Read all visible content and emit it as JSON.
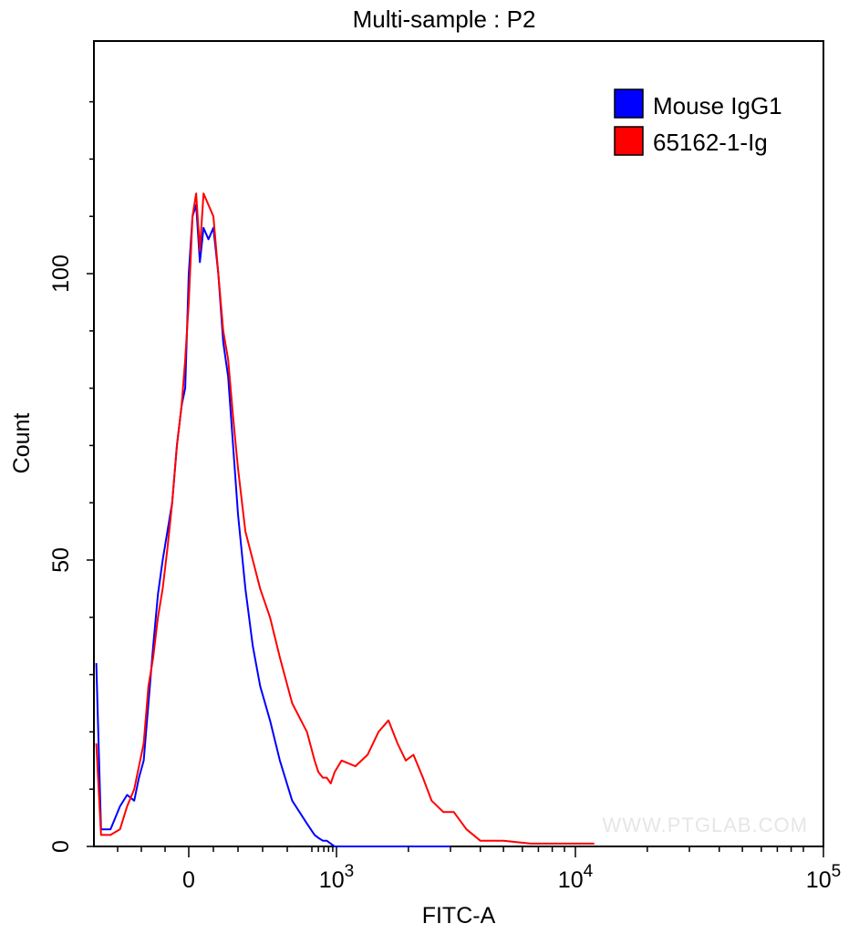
{
  "chart_data": {
    "type": "line",
    "title": "Multi-sample : P2",
    "xlabel": "FITC-A",
    "ylabel": "Count",
    "x_scale": "biexponential",
    "xlim": [
      -400,
      100000
    ],
    "ylim": [
      0,
      132
    ],
    "y_ticks": [
      "0",
      "50",
      "100"
    ],
    "x_ticks": [
      {
        "value": 0,
        "base": "0",
        "exp": ""
      },
      {
        "value": 1000,
        "base": "10",
        "exp": "3"
      },
      {
        "value": 10000,
        "base": "10",
        "exp": "4"
      },
      {
        "value": 100000,
        "base": "10",
        "exp": "5"
      }
    ],
    "legend_position": "top-right",
    "series": [
      {
        "name": "Mouse IgG1",
        "color": "#0000ff",
        "x": [
          -390,
          -370,
          -330,
          -290,
          -260,
          -230,
          -210,
          -190,
          -170,
          -150,
          -130,
          -110,
          -90,
          -70,
          -50,
          -30,
          -15,
          0,
          15,
          30,
          45,
          60,
          80,
          100,
          120,
          140,
          160,
          180,
          200,
          230,
          260,
          290,
          330,
          370,
          420,
          480,
          540,
          600,
          680,
          760,
          850,
          950,
          1050,
          1200,
          1500,
          2000,
          3000
        ],
        "y": [
          32,
          3,
          3,
          7,
          9,
          8,
          12,
          15,
          25,
          35,
          44,
          50,
          55,
          60,
          70,
          77,
          80,
          100,
          110,
          112,
          102,
          108,
          106,
          108,
          100,
          88,
          82,
          70,
          58,
          45,
          35,
          28,
          22,
          15,
          8,
          4,
          2,
          1.5,
          1,
          1,
          0.5,
          0,
          0,
          0,
          0,
          0,
          0
        ]
      },
      {
        "name": "65162-1-Ig",
        "color": "#ff0000",
        "x": [
          -390,
          -370,
          -330,
          -290,
          -260,
          -230,
          -210,
          -190,
          -170,
          -150,
          -130,
          -110,
          -90,
          -70,
          -50,
          -30,
          -15,
          0,
          15,
          30,
          45,
          60,
          80,
          100,
          120,
          140,
          160,
          180,
          200,
          230,
          260,
          290,
          330,
          370,
          420,
          480,
          540,
          600,
          680,
          760,
          850,
          950,
          1050,
          1200,
          1350,
          1500,
          1650,
          1800,
          1950,
          2100,
          2300,
          2500,
          2800,
          3100,
          3500,
          4000,
          5000,
          6500,
          8500,
          10000,
          12000
        ],
        "y": [
          18,
          2,
          2,
          3,
          7,
          10,
          14,
          18,
          28,
          33,
          40,
          45,
          52,
          60,
          70,
          77,
          85,
          95,
          110,
          114,
          104,
          114,
          112,
          110,
          100,
          90,
          85,
          75,
          66,
          55,
          50,
          45,
          40,
          33,
          25,
          20,
          15,
          13,
          12,
          12,
          11,
          13,
          15,
          14,
          16,
          20,
          22,
          18,
          15,
          16,
          12,
          8,
          6,
          6,
          3,
          1,
          1,
          0.5,
          0.5,
          0.5,
          0.5
        ]
      }
    ]
  },
  "watermark": "WWW.PTGLAB.COM"
}
